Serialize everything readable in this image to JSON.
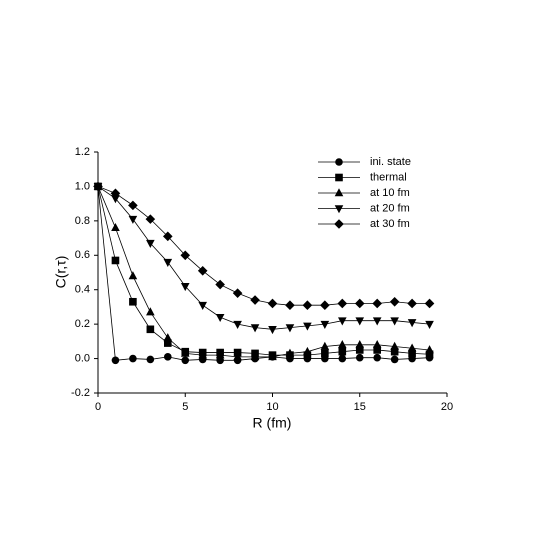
{
  "chart_data": {
    "type": "line",
    "xlabel": "R (fm)",
    "ylabel": "C(r,τ)",
    "x": [
      0,
      1,
      2,
      3,
      4,
      5,
      6,
      7,
      8,
      9,
      10,
      11,
      12,
      13,
      14,
      15,
      16,
      17,
      18,
      19
    ],
    "xlim": [
      0,
      20
    ],
    "xticks": [
      0,
      5,
      10,
      15,
      20
    ],
    "ylim": [
      -0.2,
      1.2
    ],
    "yticks": [
      -0.2,
      {
        "value": 0,
        "label": "0.0"
      },
      0.2,
      0.4,
      0.6,
      0.8,
      {
        "value": 1,
        "label": "1.0"
      },
      1.2
    ],
    "legend": "upper right",
    "series": [
      {
        "name": "ini. state",
        "color": "#000000",
        "marker": "circle",
        "values": [
          1.0,
          -0.01,
          0.0,
          -0.005,
          0.01,
          -0.01,
          -0.005,
          -0.01,
          -0.01,
          0.0,
          0.01,
          0.0,
          0.0,
          0.0,
          0.0,
          0.005,
          0.005,
          -0.005,
          0.0,
          0.005
        ]
      },
      {
        "name": "thermal",
        "color": "#000000",
        "marker": "square",
        "values": [
          1.0,
          0.57,
          0.33,
          0.17,
          0.09,
          0.04,
          0.035,
          0.035,
          0.035,
          0.03,
          0.02,
          0.02,
          0.02,
          0.03,
          0.04,
          0.05,
          0.05,
          0.04,
          0.03,
          0.025
        ]
      },
      {
        "name": "at 10 fm",
        "color": "#000000",
        "marker": "triangle-up",
        "values": [
          1.0,
          0.76,
          0.48,
          0.27,
          0.12,
          0.03,
          0.02,
          0.02,
          0.01,
          0.01,
          0.01,
          0.03,
          0.04,
          0.07,
          0.08,
          0.08,
          0.08,
          0.07,
          0.06,
          0.05
        ]
      },
      {
        "name": "at 20 fm",
        "color": "#000000",
        "marker": "triangle-down",
        "values": [
          1.0,
          0.93,
          0.81,
          0.67,
          0.56,
          0.42,
          0.31,
          0.24,
          0.2,
          0.18,
          0.17,
          0.18,
          0.19,
          0.2,
          0.22,
          0.22,
          0.22,
          0.22,
          0.21,
          0.2
        ]
      },
      {
        "name": "at 30 fm",
        "color": "#000000",
        "marker": "diamond",
        "values": [
          1.0,
          0.96,
          0.89,
          0.81,
          0.71,
          0.6,
          0.51,
          0.43,
          0.38,
          0.34,
          0.32,
          0.31,
          0.31,
          0.31,
          0.32,
          0.32,
          0.32,
          0.33,
          0.32,
          0.32
        ]
      }
    ]
  }
}
